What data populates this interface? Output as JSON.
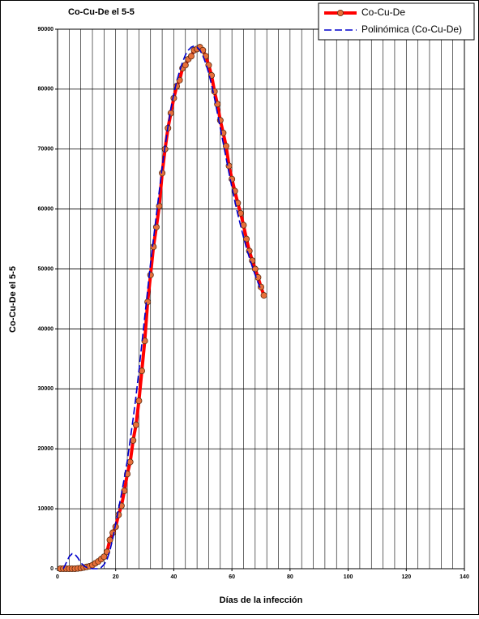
{
  "chart_data": {
    "type": "line",
    "title": "Co-Cu-De el 5-5",
    "xlabel": "Días de la infección",
    "ylabel": "Co-Cu-De el 5-5",
    "xlim": [
      0,
      140
    ],
    "xticks": [
      0,
      20,
      40,
      60,
      80,
      100,
      120,
      140
    ],
    "xminor": 4,
    "ylim": [
      0,
      90000
    ],
    "yticks": [
      0,
      10000,
      20000,
      30000,
      40000,
      50000,
      60000,
      70000,
      80000,
      90000
    ],
    "grid": true,
    "legend": "upper right",
    "series": [
      {
        "name": "Co-Cu-De",
        "color": "#ff0000",
        "marker_color": "#e8703a",
        "x": [
          1,
          2,
          3,
          4,
          5,
          6,
          7,
          8,
          9,
          10,
          11,
          12,
          13,
          14,
          15,
          16,
          17,
          18,
          19,
          20,
          21,
          22,
          23,
          24,
          25,
          26,
          27,
          28,
          29,
          30,
          31,
          32,
          33,
          34,
          35,
          36,
          37,
          38,
          39,
          40,
          41,
          42,
          43,
          44,
          45,
          46,
          47,
          48,
          49,
          50,
          51,
          52,
          53,
          54,
          55,
          56,
          57,
          58,
          59,
          60,
          61,
          62,
          63,
          64,
          65,
          66,
          67,
          68,
          69,
          70,
          71
        ],
        "values": [
          0,
          0,
          0,
          0,
          0,
          0,
          50,
          100,
          200,
          300,
          400,
          600,
          900,
          1200,
          1600,
          2000,
          2800,
          4800,
          6000,
          7000,
          9000,
          10500,
          13000,
          15800,
          17800,
          21400,
          24000,
          28000,
          33000,
          38000,
          44500,
          49000,
          53700,
          57000,
          60500,
          66000,
          70000,
          73500,
          76000,
          78500,
          80500,
          81500,
          83500,
          84000,
          85000,
          85500,
          86500,
          86700,
          87000,
          86500,
          85500,
          84000,
          82300,
          79600,
          77500,
          74800,
          72700,
          70500,
          67200,
          65000,
          63000,
          61000,
          59300,
          57300,
          55000,
          53000,
          51400,
          50000,
          48600,
          47000,
          45600
        ]
      },
      {
        "name": "Polinómica (Co-Cu-De)",
        "color": "#0000cc",
        "x": [
          2,
          3,
          4,
          5,
          6,
          7,
          8,
          9,
          10,
          11,
          12,
          13,
          14,
          15,
          16,
          17,
          18,
          19,
          20,
          21,
          22,
          23,
          24,
          25,
          26,
          27,
          28,
          29,
          30,
          31,
          32,
          33,
          34,
          35,
          36,
          37,
          38,
          39,
          40,
          41,
          42,
          43,
          44,
          45,
          46,
          47,
          48,
          49,
          50,
          51,
          52,
          53,
          54,
          55,
          56,
          57,
          58,
          59,
          60,
          61,
          62,
          63,
          64,
          65,
          66,
          67,
          68,
          69,
          70
        ],
        "values": [
          0,
          1000,
          2000,
          2500,
          2400,
          1800,
          1000,
          500,
          200,
          100,
          0,
          0,
          0,
          200,
          700,
          1500,
          3000,
          5000,
          7500,
          10000,
          12500,
          15200,
          18000,
          21500,
          25000,
          28800,
          33000,
          37500,
          42000,
          46500,
          51000,
          55000,
          59000,
          63000,
          67000,
          70500,
          73800,
          76800,
          79200,
          81300,
          83000,
          84500,
          85700,
          86500,
          87000,
          87200,
          87000,
          86500,
          85600,
          84300,
          82700,
          80700,
          78500,
          76000,
          73500,
          71000,
          68500,
          66000,
          63600,
          61300,
          59200,
          57200,
          55300,
          53500,
          51900,
          50400,
          49000,
          47700,
          46500
        ]
      }
    ]
  }
}
